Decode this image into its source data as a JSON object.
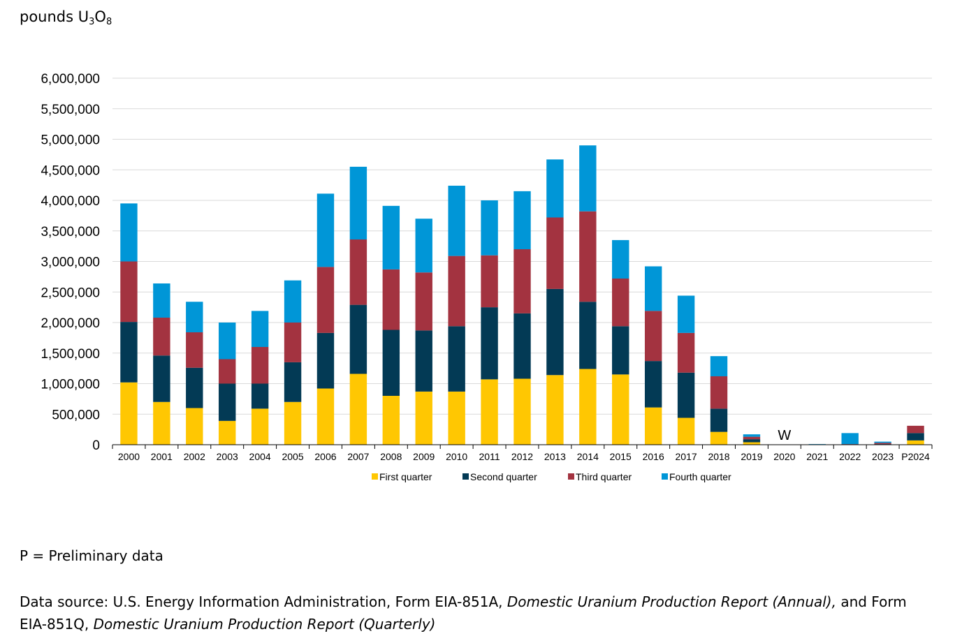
{
  "unit_label": {
    "prefix": "pounds U",
    "sub1": "3",
    "mid": "O",
    "sub2": "8"
  },
  "notes": {
    "preliminary": "P = Preliminary data",
    "source_line1_a": "Data source: U.S. Energy Information Administration, Form EIA-851A, ",
    "source_line1_b": "Domestic Uranium Production Report (Annual),",
    "source_line1_c": " and Form",
    "source_line2_a": "EIA-851Q, ",
    "source_line2_b": "Domestic Uranium Production Report (Quarterly)"
  },
  "chart_data": {
    "type": "bar",
    "stacked": true,
    "ylim": [
      0,
      6000000
    ],
    "y_ticks": [
      0,
      500000,
      1000000,
      1500000,
      2000000,
      2500000,
      3000000,
      3500000,
      4000000,
      4500000,
      5000000,
      5500000,
      6000000
    ],
    "y_tick_labels": [
      "0",
      "500,000",
      "1,000,000",
      "1,500,000",
      "2,000,000",
      "2,500,000",
      "3,000,000",
      "3,500,000",
      "4,000,000",
      "4,500,000",
      "5,000,000",
      "5,500,000",
      "6,000,000"
    ],
    "grid": true,
    "legend_position": "bottom",
    "categories": [
      "2000",
      "2001",
      "2002",
      "2003",
      "2004",
      "2005",
      "2006",
      "2007",
      "2008",
      "2009",
      "2010",
      "2011",
      "2012",
      "2013",
      "2014",
      "2015",
      "2016",
      "2017",
      "2018",
      "2019",
      "2020",
      "2021",
      "2022",
      "2023",
      "P2024"
    ],
    "series": [
      {
        "name": "First quarter",
        "color": "#FFC702",
        "values": [
          1020000,
          700000,
          600000,
          390000,
          590000,
          700000,
          920000,
          1160000,
          800000,
          870000,
          870000,
          1070000,
          1080000,
          1140000,
          1240000,
          1150000,
          610000,
          440000,
          210000,
          40000,
          0,
          0,
          0,
          0,
          70000
        ]
      },
      {
        "name": "Second quarter",
        "color": "#033A55",
        "values": [
          990000,
          760000,
          660000,
          610000,
          410000,
          650000,
          910000,
          1130000,
          1080000,
          1000000,
          1070000,
          1180000,
          1070000,
          1410000,
          1100000,
          790000,
          760000,
          740000,
          380000,
          50000,
          0,
          0,
          0,
          10000,
          120000
        ]
      },
      {
        "name": "Third quarter",
        "color": "#A33340",
        "values": [
          990000,
          620000,
          580000,
          400000,
          600000,
          650000,
          1080000,
          1070000,
          990000,
          950000,
          1150000,
          850000,
          1050000,
          1170000,
          1480000,
          780000,
          820000,
          650000,
          530000,
          40000,
          0,
          0,
          10000,
          20000,
          120000
        ]
      },
      {
        "name": "Fourth quarter",
        "color": "#0096D7",
        "values": [
          950000,
          560000,
          500000,
          600000,
          590000,
          690000,
          1200000,
          1190000,
          1040000,
          880000,
          1150000,
          900000,
          950000,
          950000,
          1080000,
          630000,
          730000,
          610000,
          330000,
          40000,
          0,
          10000,
          180000,
          20000,
          0
        ]
      }
    ],
    "annotations": [
      {
        "category": "2020",
        "text": "W"
      }
    ]
  }
}
